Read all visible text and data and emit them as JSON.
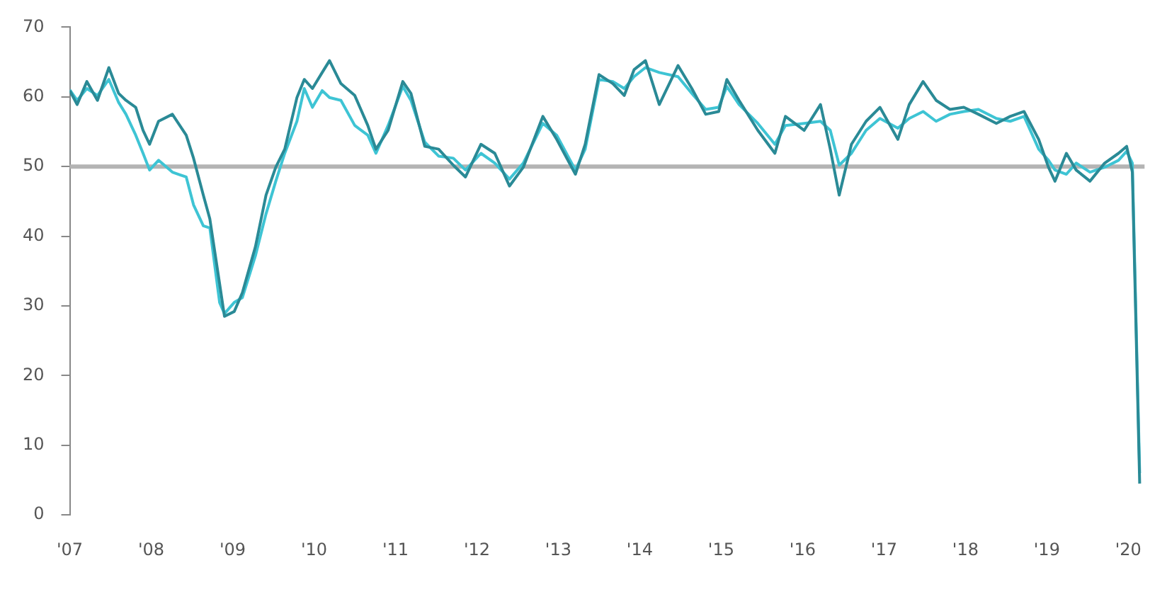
{
  "chart_data": {
    "type": "line",
    "x": [
      2007.0,
      2007.09,
      2007.21,
      2007.34,
      2007.48,
      2007.6,
      2007.69,
      2007.81,
      2007.9,
      2007.98,
      2008.09,
      2008.26,
      2008.43,
      2008.52,
      2008.64,
      2008.72,
      2008.84,
      2008.9,
      2009.02,
      2009.12,
      2009.28,
      2009.41,
      2009.53,
      2009.64,
      2009.79,
      2009.88,
      2009.98,
      2010.1,
      2010.19,
      2010.33,
      2010.5,
      2010.66,
      2010.76,
      2010.91,
      2011.09,
      2011.19,
      2011.36,
      2011.53,
      2011.71,
      2011.86,
      2012.05,
      2012.22,
      2012.4,
      2012.57,
      2012.81,
      2012.98,
      2013.21,
      2013.33,
      2013.5,
      2013.67,
      2013.81,
      2013.93,
      2014.07,
      2014.24,
      2014.47,
      2014.64,
      2014.81,
      2014.97,
      2015.07,
      2015.22,
      2015.45,
      2015.66,
      2015.79,
      2016.02,
      2016.22,
      2016.34,
      2016.45,
      2016.6,
      2016.78,
      2016.95,
      2017.17,
      2017.31,
      2017.48,
      2017.64,
      2017.81,
      2017.98,
      2018.16,
      2018.38,
      2018.55,
      2018.72,
      2018.9,
      2019.02,
      2019.1,
      2019.24,
      2019.36,
      2019.53,
      2019.71,
      2019.88,
      2019.98,
      2020.05,
      2020.14
    ],
    "series": [
      {
        "color": "#2a8a96",
        "values": [
          60.9,
          58.9,
          62.2,
          59.5,
          64.2,
          60.5,
          59.5,
          58.5,
          55.2,
          53.2,
          56.5,
          57.5,
          54.5,
          51.2,
          45.9,
          42.5,
          33.2,
          28.5,
          29.2,
          31.9,
          38.5,
          45.9,
          49.9,
          52.5,
          59.9,
          62.5,
          61.2,
          63.5,
          65.2,
          61.9,
          60.2,
          55.9,
          52.5,
          55.2,
          62.2,
          60.5,
          52.9,
          52.5,
          50.2,
          48.5,
          53.2,
          51.9,
          47.2,
          49.9,
          57.2,
          53.9,
          48.9,
          53.2,
          63.2,
          61.9,
          60.2,
          63.9,
          65.2,
          58.9,
          64.5,
          61.2,
          57.5,
          57.9,
          62.5,
          59.5,
          55.2,
          51.9,
          57.2,
          55.2,
          58.9,
          52.5,
          45.9,
          53.2,
          56.5,
          58.5,
          53.9,
          58.9,
          62.2,
          59.5,
          58.2,
          58.5,
          57.5,
          56.2,
          57.2,
          57.9,
          53.9,
          49.9,
          47.9,
          51.9,
          49.5,
          47.9,
          50.5,
          51.9,
          52.9,
          49.2,
          4.5
        ]
      },
      {
        "color": "#3ec4d4",
        "values": [
          61,
          59.5,
          61.2,
          60.2,
          62.5,
          59.2,
          57.5,
          54.5,
          51.9,
          49.5,
          50.9,
          49.2,
          48.5,
          44.5,
          41.5,
          41.2,
          30.5,
          28.9,
          30.5,
          31.2,
          37.2,
          43.2,
          47.9,
          51.9,
          56.5,
          61.2,
          58.5,
          60.9,
          59.9,
          59.5,
          55.9,
          54.5,
          51.9,
          55.9,
          61.5,
          59.5,
          53.5,
          51.5,
          51.2,
          49.5,
          51.9,
          50.5,
          48.2,
          50.5,
          56.2,
          54.5,
          49.5,
          52.5,
          62.5,
          62.2,
          61.2,
          62.9,
          64.2,
          63.5,
          62.9,
          60.5,
          58.2,
          58.5,
          61.5,
          58.9,
          56.2,
          53.2,
          55.9,
          56.2,
          56.5,
          55.2,
          50.2,
          51.9,
          55.2,
          56.9,
          55.5,
          56.9,
          57.9,
          56.5,
          57.5,
          57.9,
          58.2,
          56.9,
          56.5,
          57.2,
          52.5,
          50.9,
          49.5,
          48.9,
          50.5,
          49.2,
          49.9,
          50.9,
          52.2,
          50.5,
          6
        ]
      }
    ],
    "xlim": [
      2007,
      2020.2
    ],
    "xticks": [
      {
        "value": 2007,
        "label": "'07"
      },
      {
        "value": 2008,
        "label": "'08"
      },
      {
        "value": 2009,
        "label": "'09"
      },
      {
        "value": 2010,
        "label": "'10"
      },
      {
        "value": 2011,
        "label": "'11"
      },
      {
        "value": 2012,
        "label": "'12"
      },
      {
        "value": 2013,
        "label": "'13"
      },
      {
        "value": 2014,
        "label": "'14"
      },
      {
        "value": 2015,
        "label": "'15"
      },
      {
        "value": 2016,
        "label": "'16"
      },
      {
        "value": 2017,
        "label": "'17"
      },
      {
        "value": 2018,
        "label": "'18"
      },
      {
        "value": 2019,
        "label": "'19"
      },
      {
        "value": 2020,
        "label": "'20"
      }
    ],
    "ylim": [
      0,
      70
    ],
    "yticks": [
      0,
      10,
      20,
      30,
      40,
      50,
      60,
      70
    ],
    "ref_lines": [
      {
        "axis": "y",
        "value": 50,
        "color": "#b4b4b4"
      }
    ],
    "grid": false,
    "legend": false,
    "marker": "none",
    "line_style": "solid"
  }
}
